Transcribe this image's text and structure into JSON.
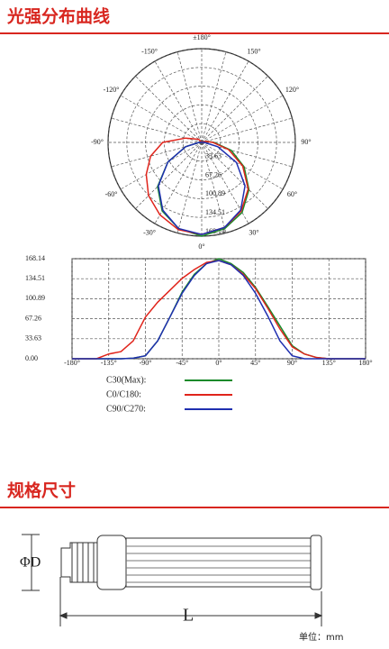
{
  "sections": {
    "light_title": "光强分布曲线",
    "size_title": "规格尺寸"
  },
  "chart_data": [
    {
      "type": "polar",
      "rlim": [
        0,
        168.14
      ],
      "rticks": [
        33.63,
        67.26,
        100.89,
        134.51,
        168.14
      ],
      "angle_ticks": [
        {
          "value": 180,
          "label": "±180°"
        },
        {
          "value": 150,
          "label": "150°"
        },
        {
          "value": 120,
          "label": "120°"
        },
        {
          "value": 90,
          "label": "90°"
        },
        {
          "value": 60,
          "label": "60°"
        },
        {
          "value": 30,
          "label": "30°"
        },
        {
          "value": 0,
          "label": "0°"
        },
        {
          "value": -30,
          "label": "-30°"
        },
        {
          "value": -60,
          "label": "-60°"
        },
        {
          "value": -90,
          "label": "-90°"
        },
        {
          "value": -120,
          "label": "-120°"
        },
        {
          "value": -150,
          "label": "-150°"
        }
      ]
    },
    {
      "type": "line",
      "xlim": [
        -180,
        180
      ],
      "ylim": [
        0,
        168.14
      ],
      "xticks": [
        {
          "value": -180,
          "label": "-180°"
        },
        {
          "value": -135,
          "label": "-135°"
        },
        {
          "value": -90,
          "label": "-90°"
        },
        {
          "value": -45,
          "label": "-45°"
        },
        {
          "value": 0,
          "label": "0°"
        },
        {
          "value": 45,
          "label": "45°"
        },
        {
          "value": 90,
          "label": "90°"
        },
        {
          "value": 135,
          "label": "135°"
        },
        {
          "value": 180,
          "label": "180°"
        }
      ],
      "yticks": [
        {
          "value": 0,
          "label": "0.00"
        },
        33.63,
        67.26,
        100.89,
        134.51,
        168.14
      ],
      "grid": true,
      "x": [
        -180,
        -165,
        -150,
        -135,
        -120,
        -105,
        -90,
        -75,
        -60,
        -45,
        -30,
        -15,
        0,
        15,
        30,
        45,
        60,
        75,
        90,
        105,
        120,
        135,
        150,
        165,
        180
      ],
      "series": [
        {
          "name": "C30(Max):",
          "color": "#1a8a2a",
          "values": [
            0,
            0,
            0,
            0,
            0,
            1,
            5,
            30,
            70,
            112,
            142,
            160,
            168,
            160,
            145,
            120,
            88,
            55,
            22,
            8,
            2,
            0,
            0,
            0,
            0
          ]
        },
        {
          "name": "C0/C180:",
          "color": "#e0241b",
          "values": [
            0,
            0,
            0,
            8,
            12,
            30,
            70,
            95,
            115,
            135,
            150,
            162,
            165,
            158,
            142,
            118,
            85,
            50,
            20,
            8,
            2,
            0,
            0,
            0,
            0
          ]
        },
        {
          "name": "C90/C270:",
          "color": "#1f2fb0",
          "values": [
            0,
            0,
            0,
            0,
            0,
            1,
            5,
            30,
            70,
            110,
            140,
            160,
            165,
            158,
            140,
            110,
            72,
            30,
            5,
            0,
            0,
            0,
            0,
            0,
            0
          ]
        }
      ]
    }
  ],
  "diagram": {
    "diameter_label": "ΦD",
    "length_label": "L",
    "unit_note": "单位：mm"
  }
}
